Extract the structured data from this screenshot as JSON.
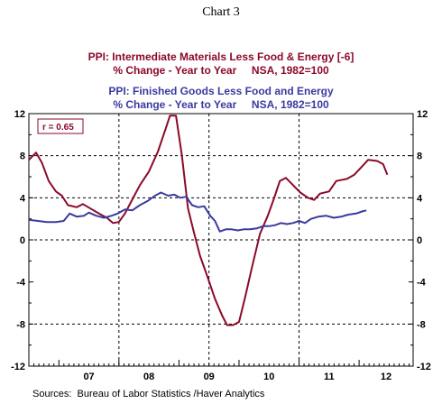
{
  "chart_data": {
    "type": "line",
    "title": "Chart 3",
    "series": [
      {
        "name": "PPI: Intermediate Materials Less Food & Energy [-6]",
        "subtitle": "% Change - Year to Year     NSA, 1982=100",
        "color": "#8b0a2a",
        "points": [
          [
            2006.5,
            7.6
          ],
          [
            2006.62,
            8.3
          ],
          [
            2006.72,
            7.3
          ],
          [
            2006.83,
            5.6
          ],
          [
            2006.95,
            4.6
          ],
          [
            2007.05,
            4.2
          ],
          [
            2007.15,
            3.3
          ],
          [
            2007.3,
            3.1
          ],
          [
            2007.4,
            3.4
          ],
          [
            2007.55,
            2.9
          ],
          [
            2007.7,
            2.4
          ],
          [
            2007.8,
            2.1
          ],
          [
            2007.9,
            1.6
          ],
          [
            2008.0,
            1.7
          ],
          [
            2008.1,
            2.5
          ],
          [
            2008.2,
            3.6
          ],
          [
            2008.35,
            5.2
          ],
          [
            2008.5,
            6.5
          ],
          [
            2008.65,
            8.4
          ],
          [
            2008.78,
            10.6
          ],
          [
            2008.85,
            11.8
          ],
          [
            2008.95,
            11.8
          ],
          [
            2009.05,
            8.0
          ],
          [
            2009.15,
            3.0
          ],
          [
            2009.25,
            0.7
          ],
          [
            2009.35,
            -1.5
          ],
          [
            2009.48,
            -3.6
          ],
          [
            2009.6,
            -5.6
          ],
          [
            2009.72,
            -7.2
          ],
          [
            2009.8,
            -8.1
          ],
          [
            2009.9,
            -8.1
          ],
          [
            2010.0,
            -7.8
          ],
          [
            2010.1,
            -5.5
          ],
          [
            2010.22,
            -2.5
          ],
          [
            2010.35,
            0.6
          ],
          [
            2010.48,
            2.3
          ],
          [
            2010.58,
            3.9
          ],
          [
            2010.68,
            5.6
          ],
          [
            2010.78,
            5.9
          ],
          [
            2010.9,
            5.2
          ],
          [
            2011.02,
            4.5
          ],
          [
            2011.15,
            4.0
          ],
          [
            2011.25,
            3.8
          ],
          [
            2011.35,
            4.4
          ],
          [
            2011.5,
            4.6
          ],
          [
            2011.62,
            5.6
          ],
          [
            2011.8,
            5.8
          ],
          [
            2011.92,
            6.2
          ],
          [
            2012.02,
            6.8
          ],
          [
            2012.15,
            7.6
          ],
          [
            2012.3,
            7.5
          ],
          [
            2012.4,
            7.2
          ],
          [
            2012.47,
            6.2
          ]
        ]
      },
      {
        "name": "PPI: Finished Goods Less Food and Energy",
        "subtitle": "% Change - Year to Year     NSA, 1982=100",
        "color": "#3a3aa0",
        "points": [
          [
            2006.5,
            1.9
          ],
          [
            2006.65,
            1.8
          ],
          [
            2006.8,
            1.7
          ],
          [
            2006.95,
            1.7
          ],
          [
            2007.08,
            1.8
          ],
          [
            2007.18,
            2.5
          ],
          [
            2007.3,
            2.2
          ],
          [
            2007.42,
            2.3
          ],
          [
            2007.5,
            2.6
          ],
          [
            2007.62,
            2.3
          ],
          [
            2007.75,
            2.1
          ],
          [
            2007.88,
            2.3
          ],
          [
            2007.98,
            2.5
          ],
          [
            2008.1,
            2.9
          ],
          [
            2008.22,
            2.8
          ],
          [
            2008.35,
            3.3
          ],
          [
            2008.48,
            3.7
          ],
          [
            2008.6,
            4.2
          ],
          [
            2008.7,
            4.5
          ],
          [
            2008.82,
            4.2
          ],
          [
            2008.92,
            4.3
          ],
          [
            2009.02,
            4.0
          ],
          [
            2009.12,
            4.1
          ],
          [
            2009.22,
            3.3
          ],
          [
            2009.32,
            3.1
          ],
          [
            2009.42,
            3.2
          ],
          [
            2009.52,
            2.3
          ],
          [
            2009.6,
            1.8
          ],
          [
            2009.68,
            0.8
          ],
          [
            2009.78,
            1.0
          ],
          [
            2009.88,
            1.0
          ],
          [
            2009.98,
            0.9
          ],
          [
            2010.08,
            1.0
          ],
          [
            2010.18,
            1.0
          ],
          [
            2010.3,
            1.1
          ],
          [
            2010.4,
            1.3
          ],
          [
            2010.5,
            1.3
          ],
          [
            2010.6,
            1.4
          ],
          [
            2010.7,
            1.6
          ],
          [
            2010.8,
            1.5
          ],
          [
            2010.9,
            1.6
          ],
          [
            2011.0,
            1.8
          ],
          [
            2011.1,
            1.6
          ],
          [
            2011.2,
            2.0
          ],
          [
            2011.32,
            2.2
          ],
          [
            2011.45,
            2.3
          ],
          [
            2011.58,
            2.1
          ],
          [
            2011.7,
            2.2
          ],
          [
            2011.82,
            2.4
          ],
          [
            2011.95,
            2.5
          ],
          [
            2012.05,
            2.7
          ],
          [
            2012.12,
            2.8
          ]
        ]
      }
    ],
    "x_categories": [
      "07",
      "08",
      "09",
      "10",
      "11",
      "12"
    ],
    "xlim": [
      2006.5,
      2012.9
    ],
    "ylim": [
      -12,
      12
    ],
    "yticks": [
      -12,
      -8,
      -4,
      0,
      4,
      8,
      12
    ],
    "ytick_labels": [
      "-12",
      "-8",
      "-4",
      "0",
      "4",
      "8",
      "12"
    ],
    "vertical_dashed_lines_at": [
      2008,
      2009.5,
      2011
    ],
    "horizontal_dashed_lines_at": [
      8,
      4,
      0,
      -8
    ],
    "annotation": "r = 0.65",
    "annotation_color": "#8b0a2a",
    "source": "Sources:  Bureau of Labor Statistics /Haver Analytics",
    "grid": false,
    "legend_placement": "top-center"
  }
}
